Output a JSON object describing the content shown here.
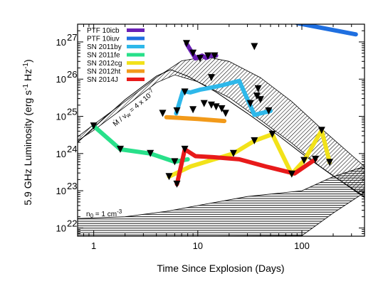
{
  "chart_data": {
    "type": "line",
    "xlabel": "Time Since Explosion (Days)",
    "ylabel": "5.9 GHz Luminosity (erg s^-1 Hz^-1)",
    "xscale": "log",
    "yscale": "log",
    "xlim": [
      0.7,
      400
    ],
    "ylim": [
      6e+21,
      3e+27
    ],
    "x_ticks": [
      1,
      10,
      100
    ],
    "x_tick_labels": [
      "1",
      "10",
      "100"
    ],
    "y_ticks": [
      1e+22,
      1e+23,
      1e+24,
      1e+25,
      1e+26,
      1e+27
    ],
    "y_tick_labels": [
      {
        "base": "10",
        "exp": "22"
      },
      {
        "base": "10",
        "exp": "23"
      },
      {
        "base": "10",
        "exp": "24"
      },
      {
        "base": "10",
        "exp": "25"
      },
      {
        "base": "10",
        "exp": "26"
      },
      {
        "base": "10",
        "exp": "27"
      }
    ],
    "legend_position": "top-left",
    "series": [
      {
        "name": "PTF 10icb",
        "color": "#6a1fb5",
        "points": [
          [
            7.8,
            9e+26
          ],
          [
            9.5,
            3.6e+26
          ],
          [
            11,
            4.3e+26
          ],
          [
            12,
            3.7e+26
          ],
          [
            13.5,
            4.3e+26
          ],
          [
            15,
            4.3e+26
          ]
        ]
      },
      {
        "name": "PTF 10iuv",
        "color": "#1f6fe0",
        "points": [
          [
            90,
            3.2e+27
          ],
          [
            330,
            1.6e+27
          ]
        ]
      },
      {
        "name": "SN 2011by",
        "color": "#2eb8ea",
        "points": [
          [
            6.2,
            1.2e+25
          ],
          [
            7.2,
            4.8e+25
          ],
          [
            8.5,
            4.4e+25
          ],
          [
            10.5,
            5.2e+25
          ],
          [
            13,
            5.8e+25
          ],
          [
            17,
            6.8e+25
          ],
          [
            25,
            9e+25
          ],
          [
            35,
            1.1e+25
          ],
          [
            50,
            1.4e+25
          ]
        ]
      },
      {
        "name": "SN 2011fe",
        "color": "#28e08a",
        "points": [
          [
            1.0,
            5.5e+24
          ],
          [
            1.8,
            1.3e+24
          ],
          [
            3.5,
            1e+24
          ],
          [
            6.0,
            6e+23
          ],
          [
            8.0,
            7e+23
          ]
        ]
      },
      {
        "name": "SN 2012cg",
        "color": "#f2e21a",
        "points": [
          [
            5.3,
            2.4e+23
          ],
          [
            8.5,
            4.5e+23
          ],
          [
            22,
            1e+24
          ],
          [
            35,
            2.2e+24
          ],
          [
            52,
            3.3e+24
          ],
          [
            80,
            2.8e+23
          ],
          [
            105,
            6.5e+23
          ],
          [
            155,
            4.2e+24
          ],
          [
            185,
            5.8e+23
          ]
        ]
      },
      {
        "name": "SN 2012ht",
        "color": "#f29a1a",
        "points": [
          [
            5.0,
            9.5e+24
          ],
          [
            10,
            8.5e+24
          ],
          [
            18,
            7.5e+24
          ]
        ]
      },
      {
        "name": "SN 2014J",
        "color": "#e81a1a",
        "points": [
          [
            6.3,
            1.5e+23
          ],
          [
            7.5,
            1.3e+24
          ],
          [
            9.5,
            8.5e+23
          ],
          [
            14,
            8e+23
          ],
          [
            25,
            7e+23
          ],
          [
            45,
            4.5e+23
          ],
          [
            85,
            2.9e+23
          ],
          [
            135,
            7e+23
          ]
        ]
      }
    ],
    "upper_limits": [
      [
        7.8,
        9e+26
      ],
      [
        9.0,
        5e+26
      ],
      [
        10.5,
        3.6e+26
      ],
      [
        12.5,
        4.2e+26
      ],
      [
        14.5,
        4.2e+26
      ],
      [
        13.5,
        1.1e+26
      ],
      [
        35,
        7.5e+26
      ],
      [
        90,
        4.5e+27
      ],
      [
        4.6,
        1.2e+25
      ],
      [
        6.3,
        1.4e+25
      ],
      [
        7.5,
        4.5e+25
      ],
      [
        9.0,
        1.5e+25
      ],
      [
        11.5,
        2.2e+25
      ],
      [
        13.5,
        2e+25
      ],
      [
        15,
        1.8e+25
      ],
      [
        17,
        1.6e+25
      ],
      [
        18.5,
        1.2e+25
      ],
      [
        32,
        2.2e+25
      ],
      [
        40,
        2.8e+25
      ],
      [
        48,
        1.4e+25
      ],
      [
        37,
        3.5e+25
      ],
      [
        38,
        5.5e+25
      ],
      [
        1.0,
        5.5e+24
      ],
      [
        1.8,
        1.3e+24
      ],
      [
        3.5,
        1e+24
      ],
      [
        6.0,
        6e+23
      ],
      [
        5.3,
        2.4e+23
      ],
      [
        6.3,
        1.5e+23
      ],
      [
        7.5,
        1.3e+24
      ],
      [
        22,
        1e+24
      ],
      [
        35,
        2.2e+24
      ],
      [
        52,
        3.3e+24
      ],
      [
        80,
        2.8e+23
      ],
      [
        105,
        6.5e+23
      ],
      [
        155,
        4.2e+24
      ],
      [
        185,
        5.8e+23
      ],
      [
        135,
        7e+23
      ]
    ],
    "models": {
      "csm_light": {
        "points": [
          [
            0.7,
            2e+24
          ],
          [
            1,
            5e+24
          ],
          [
            2,
            2.8e+25
          ],
          [
            4,
            1.2e+26
          ],
          [
            5.5,
            1.8e+26
          ],
          [
            8,
            1.2e+26
          ],
          [
            15,
            4.5e+25
          ],
          [
            30,
            1.2e+25
          ],
          [
            60,
            3e+24
          ],
          [
            100,
            1e+24
          ],
          [
            200,
            2.5e+23
          ],
          [
            400,
            7e+22
          ]
        ]
      },
      "csm_hatch": {
        "upper": [
          [
            0.7,
            2.8e+24
          ],
          [
            1,
            6e+24
          ],
          [
            2,
            2.5e+25
          ],
          [
            4,
            1.1e+26
          ],
          [
            7,
            3.1e+26
          ],
          [
            12,
            4e+26
          ],
          [
            20,
            3e+26
          ],
          [
            40,
            1.1e+26
          ],
          [
            80,
            2.5e+25
          ],
          [
            150,
            5e+24
          ],
          [
            400,
            4.5e+23
          ]
        ],
        "lower": [
          [
            0.7,
            2.2e+24
          ],
          [
            1,
            4.2e+24
          ],
          [
            2,
            1.8e+25
          ],
          [
            4,
            8e+25
          ],
          [
            6,
            1.3e+26
          ],
          [
            10,
            8.5e+25
          ],
          [
            20,
            3.2e+25
          ],
          [
            40,
            8e+24
          ],
          [
            80,
            1.9e+24
          ],
          [
            150,
            4.5e+23
          ],
          [
            400,
            6.5e+22
          ]
        ]
      },
      "ism_hatch": {
        "upper": [
          [
            0.7,
            1.8e+22
          ],
          [
            2,
            2e+22
          ],
          [
            5,
            2.8e+22
          ],
          [
            10,
            4e+22
          ],
          [
            30,
            7e+22
          ],
          [
            100,
            1e+23
          ],
          [
            200,
            2.4e+23
          ],
          [
            400,
            4.5e+23
          ]
        ],
        "lower": [
          [
            0.7,
            6e+21
          ],
          [
            10,
            6e+21
          ],
          [
            100,
            6.2e+21
          ],
          [
            200,
            2.5e+22
          ],
          [
            400,
            9e+22
          ]
        ]
      }
    },
    "annotations": {
      "wind": {
        "text": "Ṁ / v_w = 4 x 10^-7"
      },
      "ism": {
        "text": "n_0 = 1 cm^-3"
      }
    }
  }
}
